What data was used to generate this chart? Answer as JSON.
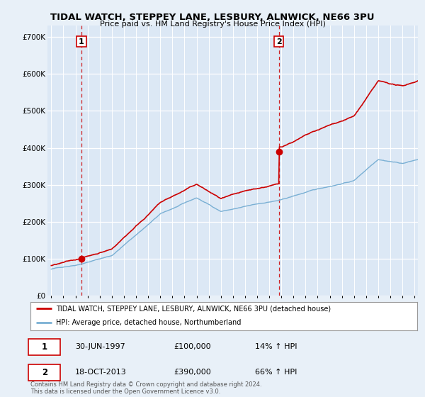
{
  "title": "TIDAL WATCH, STEPPEY LANE, LESBURY, ALNWICK, NE66 3PU",
  "subtitle": "Price paid vs. HM Land Registry's House Price Index (HPI)",
  "ylabel_ticks": [
    "£0",
    "£100K",
    "£200K",
    "£300K",
    "£400K",
    "£500K",
    "£600K",
    "£700K"
  ],
  "ytick_vals": [
    0,
    100000,
    200000,
    300000,
    400000,
    500000,
    600000,
    700000
  ],
  "ylim": [
    0,
    730000
  ],
  "xlim_start": 1994.7,
  "xlim_end": 2025.3,
  "sale1_date": 1997.49,
  "sale1_price": 100000,
  "sale1_label": "1",
  "sale2_date": 2013.8,
  "sale2_price": 390000,
  "sale2_label": "2",
  "hpi_color": "#7ab0d4",
  "property_color": "#cc0000",
  "dashed_line_color": "#cc0000",
  "background_color": "#e8f0f8",
  "plot_bg_color": "#dce8f5",
  "grid_color": "#ffffff",
  "legend_label_property": "TIDAL WATCH, STEPPEY LANE, LESBURY, ALNWICK, NE66 3PU (detached house)",
  "legend_label_hpi": "HPI: Average price, detached house, Northumberland",
  "annotation1_date": "30-JUN-1997",
  "annotation1_price": "£100,000",
  "annotation1_hpi": "14% ↑ HPI",
  "annotation2_date": "18-OCT-2013",
  "annotation2_price": "£390,000",
  "annotation2_hpi": "66% ↑ HPI",
  "copyright_text": "Contains HM Land Registry data © Crown copyright and database right 2024.\nThis data is licensed under the Open Government Licence v3.0.",
  "xticks": [
    1995,
    1996,
    1997,
    1998,
    1999,
    2000,
    2001,
    2002,
    2003,
    2004,
    2005,
    2006,
    2007,
    2008,
    2009,
    2010,
    2011,
    2012,
    2013,
    2014,
    2015,
    2016,
    2017,
    2018,
    2019,
    2020,
    2021,
    2022,
    2023,
    2024,
    2025
  ]
}
